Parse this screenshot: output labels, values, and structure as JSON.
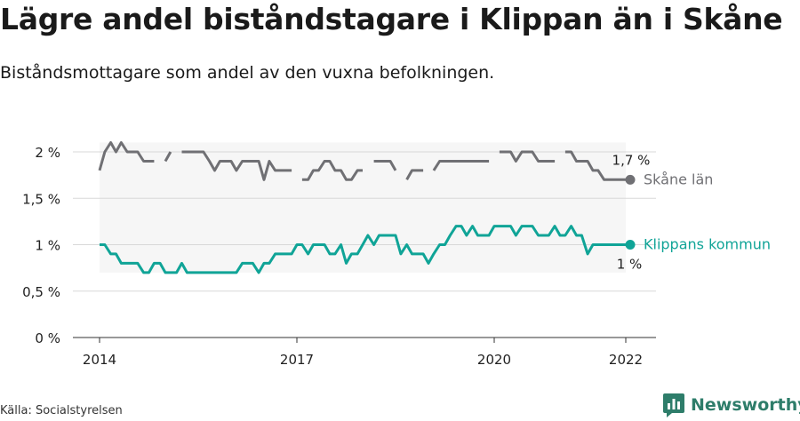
{
  "title": "Lägre andel biståndstagare i Klippan än i Skåne",
  "subtitle": "Biståndsmottagare som andel av den vuxna befolkningen.",
  "source": "Källa: Socialstyrelsen",
  "brand": "Newsworthy",
  "colors": {
    "skane": "#707074",
    "klippan": "#10a497",
    "band": "#f6f6f6",
    "grid": "#d8d8d8",
    "brand": "#2e7d6a"
  },
  "icons": {
    "brand_logo": "bar-chart-icon"
  },
  "chart_data": {
    "type": "line",
    "title": "Lägre andel biståndstagare i Klippan än i Skåne",
    "subtitle": "Biståndsmottagare som andel av den vuxna befolkningen.",
    "x_ticks": [
      "2014",
      "2017",
      "2020",
      "2022"
    ],
    "y_ticks": [
      "0 %",
      "0,5 %",
      "1 %",
      "1,5 %",
      "2 %"
    ],
    "ylim": [
      0,
      2.2
    ],
    "grid": true,
    "unit": "%",
    "series": [
      {
        "name": "Skåne län",
        "end_label": "1,7 %",
        "values": [
          [
            2014.0,
            1.8
          ],
          [
            2014.08,
            2.0
          ],
          [
            2014.17,
            2.1
          ],
          [
            2014.25,
            2.0
          ],
          [
            2014.33,
            2.1
          ],
          [
            2014.42,
            2.0
          ],
          [
            2014.5,
            2.0
          ],
          [
            2014.58,
            2.0
          ],
          [
            2014.67,
            1.9
          ],
          [
            2014.75,
            1.9
          ],
          [
            2014.83,
            1.9
          ],
          [
            2014.92,
            null
          ],
          [
            2015.0,
            1.9
          ],
          [
            2015.08,
            2.0
          ],
          [
            2015.17,
            null
          ],
          [
            2015.25,
            2.0
          ],
          [
            2015.33,
            2.0
          ],
          [
            2015.42,
            2.0
          ],
          [
            2015.5,
            2.0
          ],
          [
            2015.58,
            2.0
          ],
          [
            2015.67,
            1.9
          ],
          [
            2015.75,
            1.8
          ],
          [
            2015.83,
            1.9
          ],
          [
            2015.92,
            1.9
          ],
          [
            2016.0,
            1.9
          ],
          [
            2016.08,
            1.8
          ],
          [
            2016.17,
            1.9
          ],
          [
            2016.25,
            1.9
          ],
          [
            2016.33,
            1.9
          ],
          [
            2016.42,
            1.9
          ],
          [
            2016.5,
            1.7
          ],
          [
            2016.58,
            1.9
          ],
          [
            2016.67,
            1.8
          ],
          [
            2016.75,
            1.8
          ],
          [
            2016.83,
            1.8
          ],
          [
            2016.92,
            1.8
          ],
          [
            2017.0,
            null
          ],
          [
            2017.08,
            1.7
          ],
          [
            2017.17,
            1.7
          ],
          [
            2017.25,
            1.8
          ],
          [
            2017.33,
            1.8
          ],
          [
            2017.42,
            1.9
          ],
          [
            2017.5,
            1.9
          ],
          [
            2017.58,
            1.8
          ],
          [
            2017.67,
            1.8
          ],
          [
            2017.75,
            1.7
          ],
          [
            2017.83,
            1.7
          ],
          [
            2017.92,
            1.8
          ],
          [
            2018.0,
            1.8
          ],
          [
            2018.08,
            null
          ],
          [
            2018.17,
            1.9
          ],
          [
            2018.25,
            1.9
          ],
          [
            2018.33,
            1.9
          ],
          [
            2018.42,
            1.9
          ],
          [
            2018.5,
            1.8
          ],
          [
            2018.58,
            null
          ],
          [
            2018.67,
            1.7
          ],
          [
            2018.75,
            1.8
          ],
          [
            2018.83,
            1.8
          ],
          [
            2018.92,
            1.8
          ],
          [
            2019.0,
            null
          ],
          [
            2019.08,
            1.8
          ],
          [
            2019.17,
            1.9
          ],
          [
            2019.25,
            1.9
          ],
          [
            2019.33,
            1.9
          ],
          [
            2019.42,
            1.9
          ],
          [
            2019.5,
            1.9
          ],
          [
            2019.58,
            1.9
          ],
          [
            2019.67,
            1.9
          ],
          [
            2019.75,
            1.9
          ],
          [
            2019.83,
            1.9
          ],
          [
            2019.92,
            1.9
          ],
          [
            2020.0,
            null
          ],
          [
            2020.08,
            2.0
          ],
          [
            2020.17,
            2.0
          ],
          [
            2020.25,
            2.0
          ],
          [
            2020.33,
            1.9
          ],
          [
            2020.42,
            2.0
          ],
          [
            2020.5,
            2.0
          ],
          [
            2020.58,
            2.0
          ],
          [
            2020.67,
            1.9
          ],
          [
            2020.75,
            1.9
          ],
          [
            2020.83,
            1.9
          ],
          [
            2020.92,
            1.9
          ],
          [
            2021.0,
            null
          ],
          [
            2021.08,
            2.0
          ],
          [
            2021.17,
            2.0
          ],
          [
            2021.25,
            1.9
          ],
          [
            2021.33,
            1.9
          ],
          [
            2021.42,
            1.9
          ],
          [
            2021.5,
            1.8
          ],
          [
            2021.58,
            1.8
          ],
          [
            2021.67,
            1.7
          ],
          [
            2021.75,
            1.7
          ],
          [
            2021.83,
            1.7
          ],
          [
            2021.92,
            1.7
          ],
          [
            2022.0,
            1.7
          ]
        ]
      },
      {
        "name": "Klippans kommun",
        "end_label": "1 %",
        "values": [
          [
            2014.0,
            1.0
          ],
          [
            2014.08,
            1.0
          ],
          [
            2014.17,
            0.9
          ],
          [
            2014.25,
            0.9
          ],
          [
            2014.33,
            0.8
          ],
          [
            2014.42,
            0.8
          ],
          [
            2014.5,
            0.8
          ],
          [
            2014.58,
            0.8
          ],
          [
            2014.67,
            0.7
          ],
          [
            2014.75,
            0.7
          ],
          [
            2014.83,
            0.8
          ],
          [
            2014.92,
            0.8
          ],
          [
            2015.0,
            0.7
          ],
          [
            2015.08,
            0.7
          ],
          [
            2015.17,
            0.7
          ],
          [
            2015.25,
            0.8
          ],
          [
            2015.33,
            0.7
          ],
          [
            2015.42,
            0.7
          ],
          [
            2015.5,
            0.7
          ],
          [
            2015.58,
            0.7
          ],
          [
            2015.67,
            0.7
          ],
          [
            2015.75,
            0.7
          ],
          [
            2015.83,
            0.7
          ],
          [
            2015.92,
            0.7
          ],
          [
            2016.0,
            0.7
          ],
          [
            2016.08,
            0.7
          ],
          [
            2016.17,
            0.8
          ],
          [
            2016.25,
            0.8
          ],
          [
            2016.33,
            0.8
          ],
          [
            2016.42,
            0.7
          ],
          [
            2016.5,
            0.8
          ],
          [
            2016.58,
            0.8
          ],
          [
            2016.67,
            0.9
          ],
          [
            2016.75,
            0.9
          ],
          [
            2016.83,
            0.9
          ],
          [
            2016.92,
            0.9
          ],
          [
            2017.0,
            1.0
          ],
          [
            2017.08,
            1.0
          ],
          [
            2017.17,
            0.9
          ],
          [
            2017.25,
            1.0
          ],
          [
            2017.33,
            1.0
          ],
          [
            2017.42,
            1.0
          ],
          [
            2017.5,
            0.9
          ],
          [
            2017.58,
            0.9
          ],
          [
            2017.67,
            1.0
          ],
          [
            2017.75,
            0.8
          ],
          [
            2017.83,
            0.9
          ],
          [
            2017.92,
            0.9
          ],
          [
            2018.0,
            1.0
          ],
          [
            2018.08,
            1.1
          ],
          [
            2018.17,
            1.0
          ],
          [
            2018.25,
            1.1
          ],
          [
            2018.33,
            1.1
          ],
          [
            2018.42,
            1.1
          ],
          [
            2018.5,
            1.1
          ],
          [
            2018.58,
            0.9
          ],
          [
            2018.67,
            1.0
          ],
          [
            2018.75,
            0.9
          ],
          [
            2018.83,
            0.9
          ],
          [
            2018.92,
            0.9
          ],
          [
            2019.0,
            0.8
          ],
          [
            2019.08,
            0.9
          ],
          [
            2019.17,
            1.0
          ],
          [
            2019.25,
            1.0
          ],
          [
            2019.33,
            1.1
          ],
          [
            2019.42,
            1.2
          ],
          [
            2019.5,
            1.2
          ],
          [
            2019.58,
            1.1
          ],
          [
            2019.67,
            1.2
          ],
          [
            2019.75,
            1.1
          ],
          [
            2019.83,
            1.1
          ],
          [
            2019.92,
            1.1
          ],
          [
            2020.0,
            1.2
          ],
          [
            2020.08,
            1.2
          ],
          [
            2020.17,
            1.2
          ],
          [
            2020.25,
            1.2
          ],
          [
            2020.33,
            1.1
          ],
          [
            2020.42,
            1.2
          ],
          [
            2020.5,
            1.2
          ],
          [
            2020.58,
            1.2
          ],
          [
            2020.67,
            1.1
          ],
          [
            2020.75,
            1.1
          ],
          [
            2020.83,
            1.1
          ],
          [
            2020.92,
            1.2
          ],
          [
            2021.0,
            1.1
          ],
          [
            2021.08,
            1.1
          ],
          [
            2021.17,
            1.2
          ],
          [
            2021.25,
            1.1
          ],
          [
            2021.33,
            1.1
          ],
          [
            2021.42,
            0.9
          ],
          [
            2021.5,
            1.0
          ],
          [
            2021.58,
            1.0
          ],
          [
            2021.67,
            1.0
          ],
          [
            2021.75,
            1.0
          ],
          [
            2021.83,
            1.0
          ],
          [
            2021.92,
            1.0
          ],
          [
            2022.0,
            1.0
          ]
        ]
      }
    ]
  }
}
